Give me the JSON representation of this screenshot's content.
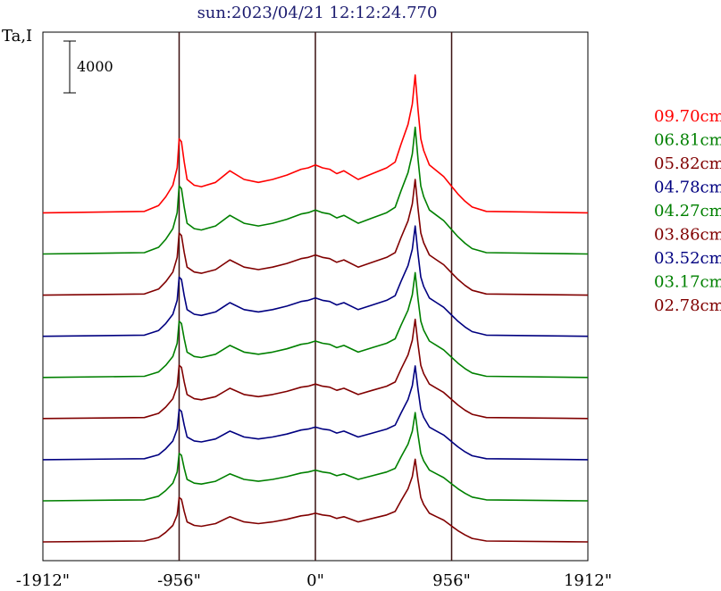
{
  "chart_data": {
    "type": "line",
    "title": "sun:2023/04/21 12:12:24.770",
    "ylabel": "Ta,I",
    "scale_bar_label": "4000",
    "x_ticks": [
      "-1912\"",
      "-956\"",
      "0\"",
      "956\"",
      "1912\""
    ],
    "x_tick_values": [
      -1912,
      -956,
      0,
      956,
      1912
    ],
    "xlim": [
      -1912,
      1912
    ],
    "vertical_lines": [
      -956,
      0,
      956
    ],
    "series": [
      {
        "name": "09.70cm",
        "color": "#ff0000",
        "baseline_offset": 8,
        "amp": 1.25
      },
      {
        "name": "06.81cm",
        "color": "#008000",
        "baseline_offset": 7,
        "amp": 1.15
      },
      {
        "name": "05.82cm",
        "color": "#800000",
        "baseline_offset": 6,
        "amp": 1.05
      },
      {
        "name": "04.78cm",
        "color": "#000080",
        "baseline_offset": 5,
        "amp": 1.0
      },
      {
        "name": "04.27cm",
        "color": "#008000",
        "baseline_offset": 4,
        "amp": 0.95
      },
      {
        "name": "03.86cm",
        "color": "#800000",
        "baseline_offset": 3,
        "amp": 0.9
      },
      {
        "name": "03.52cm",
        "color": "#000080",
        "baseline_offset": 2,
        "amp": 0.85
      },
      {
        "name": "03.17cm",
        "color": "#008000",
        "baseline_offset": 1,
        "amp": 0.8
      },
      {
        "name": "02.78cm",
        "color": "#800000",
        "baseline_offset": 0,
        "amp": 0.75
      }
    ],
    "profile_x": [
      -1912,
      -1200,
      -1100,
      -1050,
      -1000,
      -970,
      -956,
      -940,
      -920,
      -900,
      -850,
      -800,
      -700,
      -600,
      -500,
      -400,
      -300,
      -200,
      -100,
      -50,
      0,
      50,
      100,
      150,
      200,
      300,
      400,
      500,
      560,
      600,
      650,
      680,
      700,
      720,
      740,
      760,
      800,
      850,
      900,
      950,
      1000,
      1050,
      1100,
      1200,
      1912
    ],
    "profile_y": [
      0.05,
      0.1,
      0.3,
      0.6,
      1.0,
      1.6,
      2.6,
      2.5,
      1.8,
      1.2,
      1.0,
      0.95,
      1.1,
      1.5,
      1.2,
      1.1,
      1.2,
      1.35,
      1.55,
      1.6,
      1.7,
      1.6,
      1.55,
      1.4,
      1.5,
      1.2,
      1.4,
      1.6,
      1.8,
      2.4,
      3.1,
      3.8,
      4.8,
      3.6,
      2.6,
      2.2,
      1.7,
      1.5,
      1.3,
      1.0,
      0.7,
      0.45,
      0.25,
      0.1,
      0.05
    ]
  }
}
